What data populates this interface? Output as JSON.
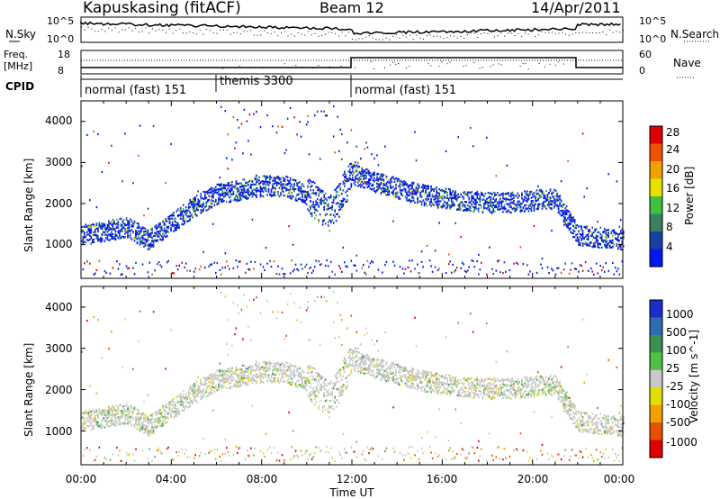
{
  "header": {
    "station": "Kapuskasing (fitACF)",
    "beam": "Beam 12",
    "date": "14/Apr/2011"
  },
  "noise_panel": {
    "left_label": "N.Sky",
    "right_label": "N.Search",
    "left_ticks": [
      "10^5",
      "10^0"
    ],
    "right_ticks": [
      "10^5",
      "10^0"
    ]
  },
  "freq_panel": {
    "left_label_1": "Freq.",
    "left_label_2": "[MHz]",
    "right_label": "Nave",
    "left_ticks": [
      "18",
      "8"
    ],
    "right_ticks": [
      "60",
      "0"
    ]
  },
  "cpid": {
    "label": "CPID",
    "segments": [
      {
        "name": "normal (fast) 151",
        "start": "00:00",
        "end": "06:00"
      },
      {
        "name": "themis 3300",
        "start": "06:00",
        "end": "12:00"
      },
      {
        "name": "normal (fast) 151",
        "start": "12:00",
        "end": "24:00"
      }
    ]
  },
  "time_axis": {
    "label": "Time UT",
    "ticks": [
      "00:00",
      "04:00",
      "08:00",
      "12:00",
      "16:00",
      "20:00",
      "00:00"
    ]
  },
  "range_axis": {
    "label": "Slant Range [km]",
    "ticks": [
      "1000",
      "2000",
      "3000",
      "4000"
    ]
  },
  "power_scale": {
    "label": "Power [dB]",
    "ticks": [
      "4",
      "8",
      "12",
      "16",
      "20",
      "24",
      "28"
    ],
    "colors": [
      "#0018f0",
      "#1840a0",
      "#3c8060",
      "#40c040",
      "#e8e000",
      "#f0a000",
      "#f05000",
      "#e00000"
    ]
  },
  "velocity_scale": {
    "label": "Velocity [m s^-1]",
    "ticks": [
      "1000",
      "500",
      "100",
      "25",
      "-25",
      "-100",
      "-500",
      "-1000"
    ],
    "colors": [
      "#1c2cc8",
      "#2c6cb0",
      "#3c9050",
      "#50c040",
      "#c8c8c8",
      "#e0e000",
      "#f0a000",
      "#e85000",
      "#e00000"
    ]
  },
  "chart_data": {
    "type": "heatmap",
    "xlabel": "Time UT",
    "ylabel": "Slant Range [km]",
    "xlim_hours": [
      0,
      24
    ],
    "ylim_km": [
      180,
      4500
    ],
    "panels": [
      "Power [dB]",
      "Velocity [m s^-1]"
    ],
    "main_echo_band": {
      "time_hours": [
        0,
        1,
        2,
        3,
        4,
        5,
        6,
        7,
        8,
        9,
        10,
        11,
        12,
        13,
        14,
        15,
        16,
        17,
        18,
        19,
        20,
        21,
        22,
        23,
        24
      ],
      "range_km": [
        1200,
        1300,
        1400,
        1100,
        1500,
        1900,
        2200,
        2300,
        2400,
        2400,
        2200,
        1700,
        2700,
        2500,
        2350,
        2200,
        2100,
        2050,
        2000,
        2000,
        2050,
        2100,
        1200,
        1150,
        1100
      ]
    },
    "power_db_range": [
      0,
      30
    ],
    "velocity_range": [
      -1000,
      1000
    ]
  }
}
